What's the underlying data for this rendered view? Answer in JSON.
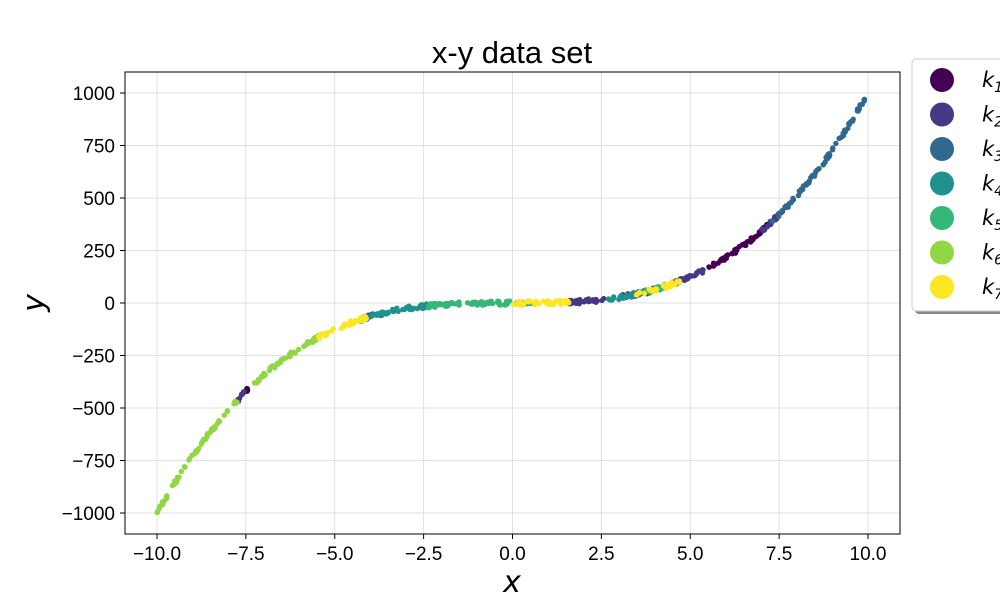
{
  "chart_data": {
    "type": "scatter",
    "title": "x-y data set",
    "xlabel": "x",
    "ylabel": "y",
    "xlim": [
      -10.9,
      10.9
    ],
    "ylim": [
      -1100,
      1100
    ],
    "xticks": [
      -10.0,
      -7.5,
      -5.0,
      -2.5,
      0.0,
      2.5,
      5.0,
      7.5,
      10.0
    ],
    "xtick_labels": [
      "−10.0",
      "−7.5",
      "−5.0",
      "−2.5",
      "0.0",
      "2.5",
      "5.0",
      "7.5",
      "10.0"
    ],
    "yticks": [
      -1000,
      -750,
      -500,
      -250,
      0,
      250,
      500,
      750,
      1000
    ],
    "ytick_labels": [
      "−1000",
      "−750",
      "−500",
      "−250",
      "0",
      "250",
      "500",
      "750",
      "1000"
    ],
    "grid": true,
    "legend_position": "outside-top-right",
    "series": [
      {
        "name": "k1",
        "color": "#440154",
        "segments": [
          [
            -7.6,
            -7.4
          ],
          [
            5.5,
            7.3
          ]
        ]
      },
      {
        "name": "k2",
        "color": "#443983",
        "segments": [
          [
            -7.8,
            -7.5
          ],
          [
            -4.3,
            -4.1
          ],
          [
            1.5,
            2.6
          ],
          [
            3.0,
            5.4
          ],
          [
            7.0,
            7.6
          ]
        ]
      },
      {
        "name": "k3",
        "color": "#31688e",
        "segments": [
          [
            -4.3,
            -3.6
          ],
          [
            7.3,
            10.0
          ]
        ]
      },
      {
        "name": "k4",
        "color": "#21918c",
        "segments": [
          [
            -4.1,
            -2.4
          ],
          [
            2.7,
            4.0
          ]
        ]
      },
      {
        "name": "k5",
        "color": "#35b779",
        "segments": [
          [
            -2.4,
            0.6
          ],
          [
            3.6,
            4.3
          ]
        ]
      },
      {
        "name": "k6",
        "color": "#90d743",
        "segments": [
          [
            -10.0,
            -7.6
          ],
          [
            -7.3,
            -5.4
          ]
        ]
      },
      {
        "name": "k7",
        "color": "#fde725",
        "segments": [
          [
            -5.5,
            -4.0
          ],
          [
            0.0,
            1.6
          ],
          [
            3.4,
            4.7
          ]
        ]
      }
    ],
    "function": "y = x^3 + noise",
    "noise_amplitude": 10
  }
}
